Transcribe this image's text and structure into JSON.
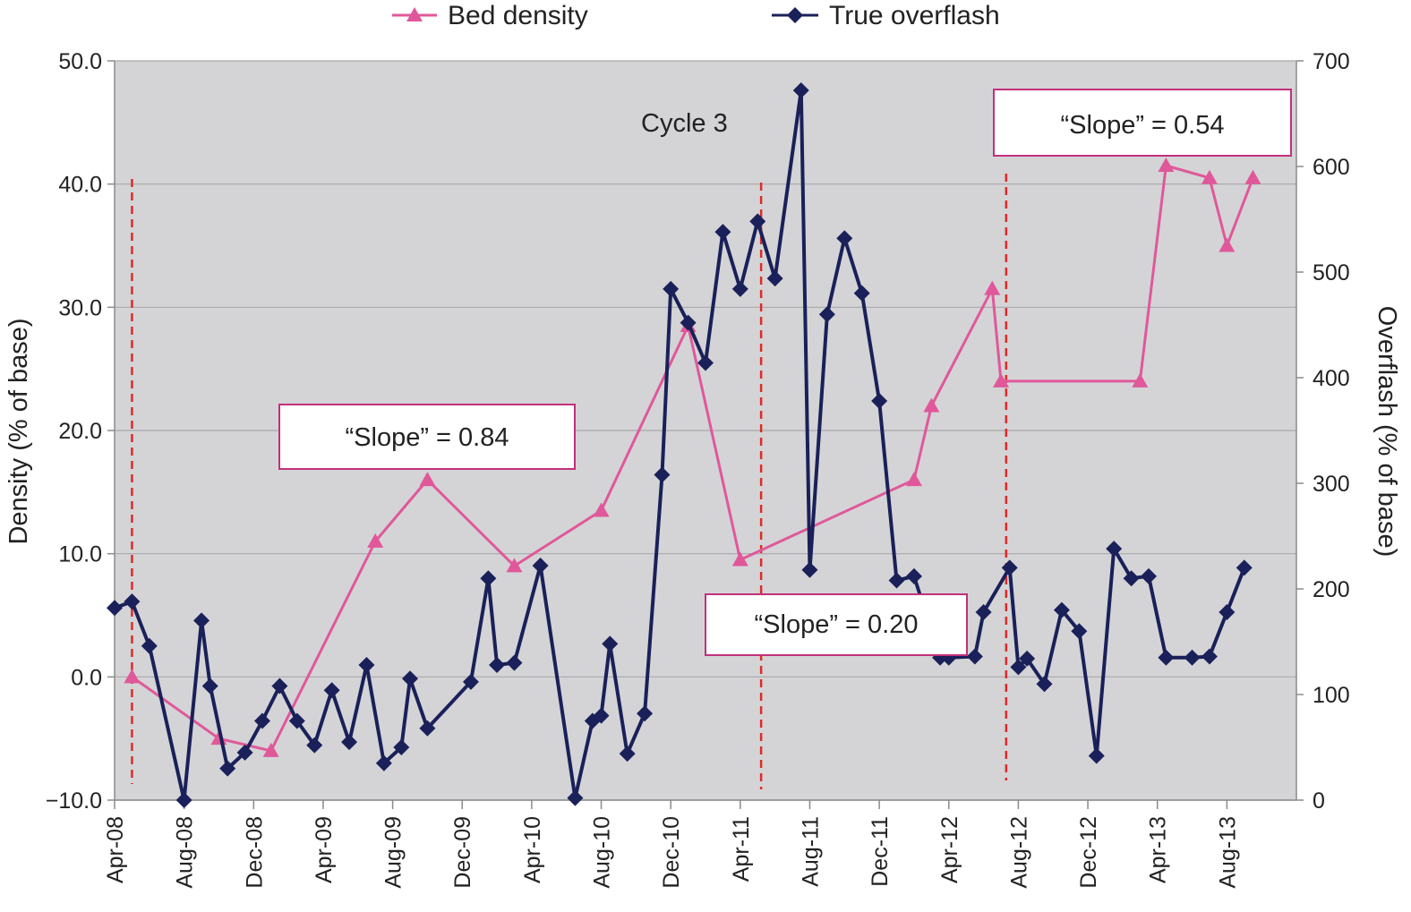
{
  "chart_data": {
    "type": "line",
    "title": "",
    "x_ticks": [
      "Apr-08",
      "Aug-08",
      "Dec-08",
      "Apr-09",
      "Aug-09",
      "Dec-09",
      "Apr-10",
      "Aug-10",
      "Dec-10",
      "Apr-11",
      "Aug-11",
      "Dec-11",
      "Apr-12",
      "Aug-12",
      "Dec-12",
      "Apr-13",
      "Aug-13"
    ],
    "xlim": [
      0,
      68
    ],
    "y_left": {
      "label": "Density (% of base)",
      "range": [
        -10,
        50
      ],
      "ticks": [
        "−10.0",
        "0.0",
        "10.0",
        "20.0",
        "30.0",
        "40.0",
        "50.0"
      ]
    },
    "y_right": {
      "label": "Overflash (% of base)",
      "range": [
        0,
        700
      ],
      "ticks": [
        "0",
        "100",
        "200",
        "300",
        "400",
        "500",
        "600",
        "700"
      ]
    },
    "grid": "horizontal",
    "legend_position": "top",
    "series": [
      {
        "name": "Bed density",
        "axis": "left",
        "color": "#e0589a",
        "marker": "triangle",
        "x": [
          1,
          6,
          9,
          15,
          18,
          23,
          28,
          33,
          36,
          46,
          47,
          50.5,
          51,
          59,
          60.5,
          63,
          64,
          65.5
        ],
        "y": [
          0.0,
          -5.0,
          -6.0,
          11.0,
          16.0,
          9.0,
          13.5,
          28.5,
          9.5,
          16.0,
          22.0,
          31.5,
          24.0,
          24.0,
          41.5,
          40.5,
          35.0,
          40.5
        ]
      },
      {
        "name": "True overflash",
        "axis": "right",
        "color": "#1a2059",
        "marker": "diamond",
        "x": [
          0,
          1,
          2,
          4,
          5,
          5.5,
          6.5,
          7.5,
          8.5,
          9.5,
          10.5,
          11.5,
          12.5,
          13.5,
          14.5,
          15.5,
          16.5,
          17,
          18,
          20.5,
          21.5,
          22,
          23,
          24.5,
          26.5,
          27.5,
          28,
          28.5,
          29.5,
          30.5,
          31.5,
          32,
          33,
          34,
          35,
          36,
          37,
          38,
          39.5,
          40,
          41,
          42,
          43,
          44,
          45,
          46,
          47.5,
          48,
          49.5,
          50,
          51.5,
          52,
          52.5,
          53.5,
          54.5,
          55.5,
          56.5,
          57.5,
          58.5,
          59.5,
          60.5,
          62,
          63,
          64,
          65
        ],
        "y": [
          182,
          188,
          146,
          0,
          170,
          108,
          30,
          45,
          75,
          108,
          75,
          52,
          104,
          55,
          128,
          35,
          50,
          115,
          68,
          112,
          210,
          128,
          130,
          222,
          2,
          75,
          80,
          148,
          44,
          82,
          308,
          484,
          452,
          414,
          538,
          484,
          548,
          494,
          672,
          218,
          460,
          532,
          480,
          378,
          208,
          212,
          135,
          135,
          136,
          178,
          220,
          126,
          134,
          110,
          180,
          160,
          42,
          238,
          210,
          212,
          135,
          135,
          136,
          178,
          220
        ]
      }
    ],
    "annotations": [
      {
        "text": "Cycle 3"
      },
      {
        "text": "“Slope” = 0.84"
      },
      {
        "text": "“Slope” = 0.20"
      },
      {
        "text": "“Slope” = 0.54"
      }
    ]
  }
}
